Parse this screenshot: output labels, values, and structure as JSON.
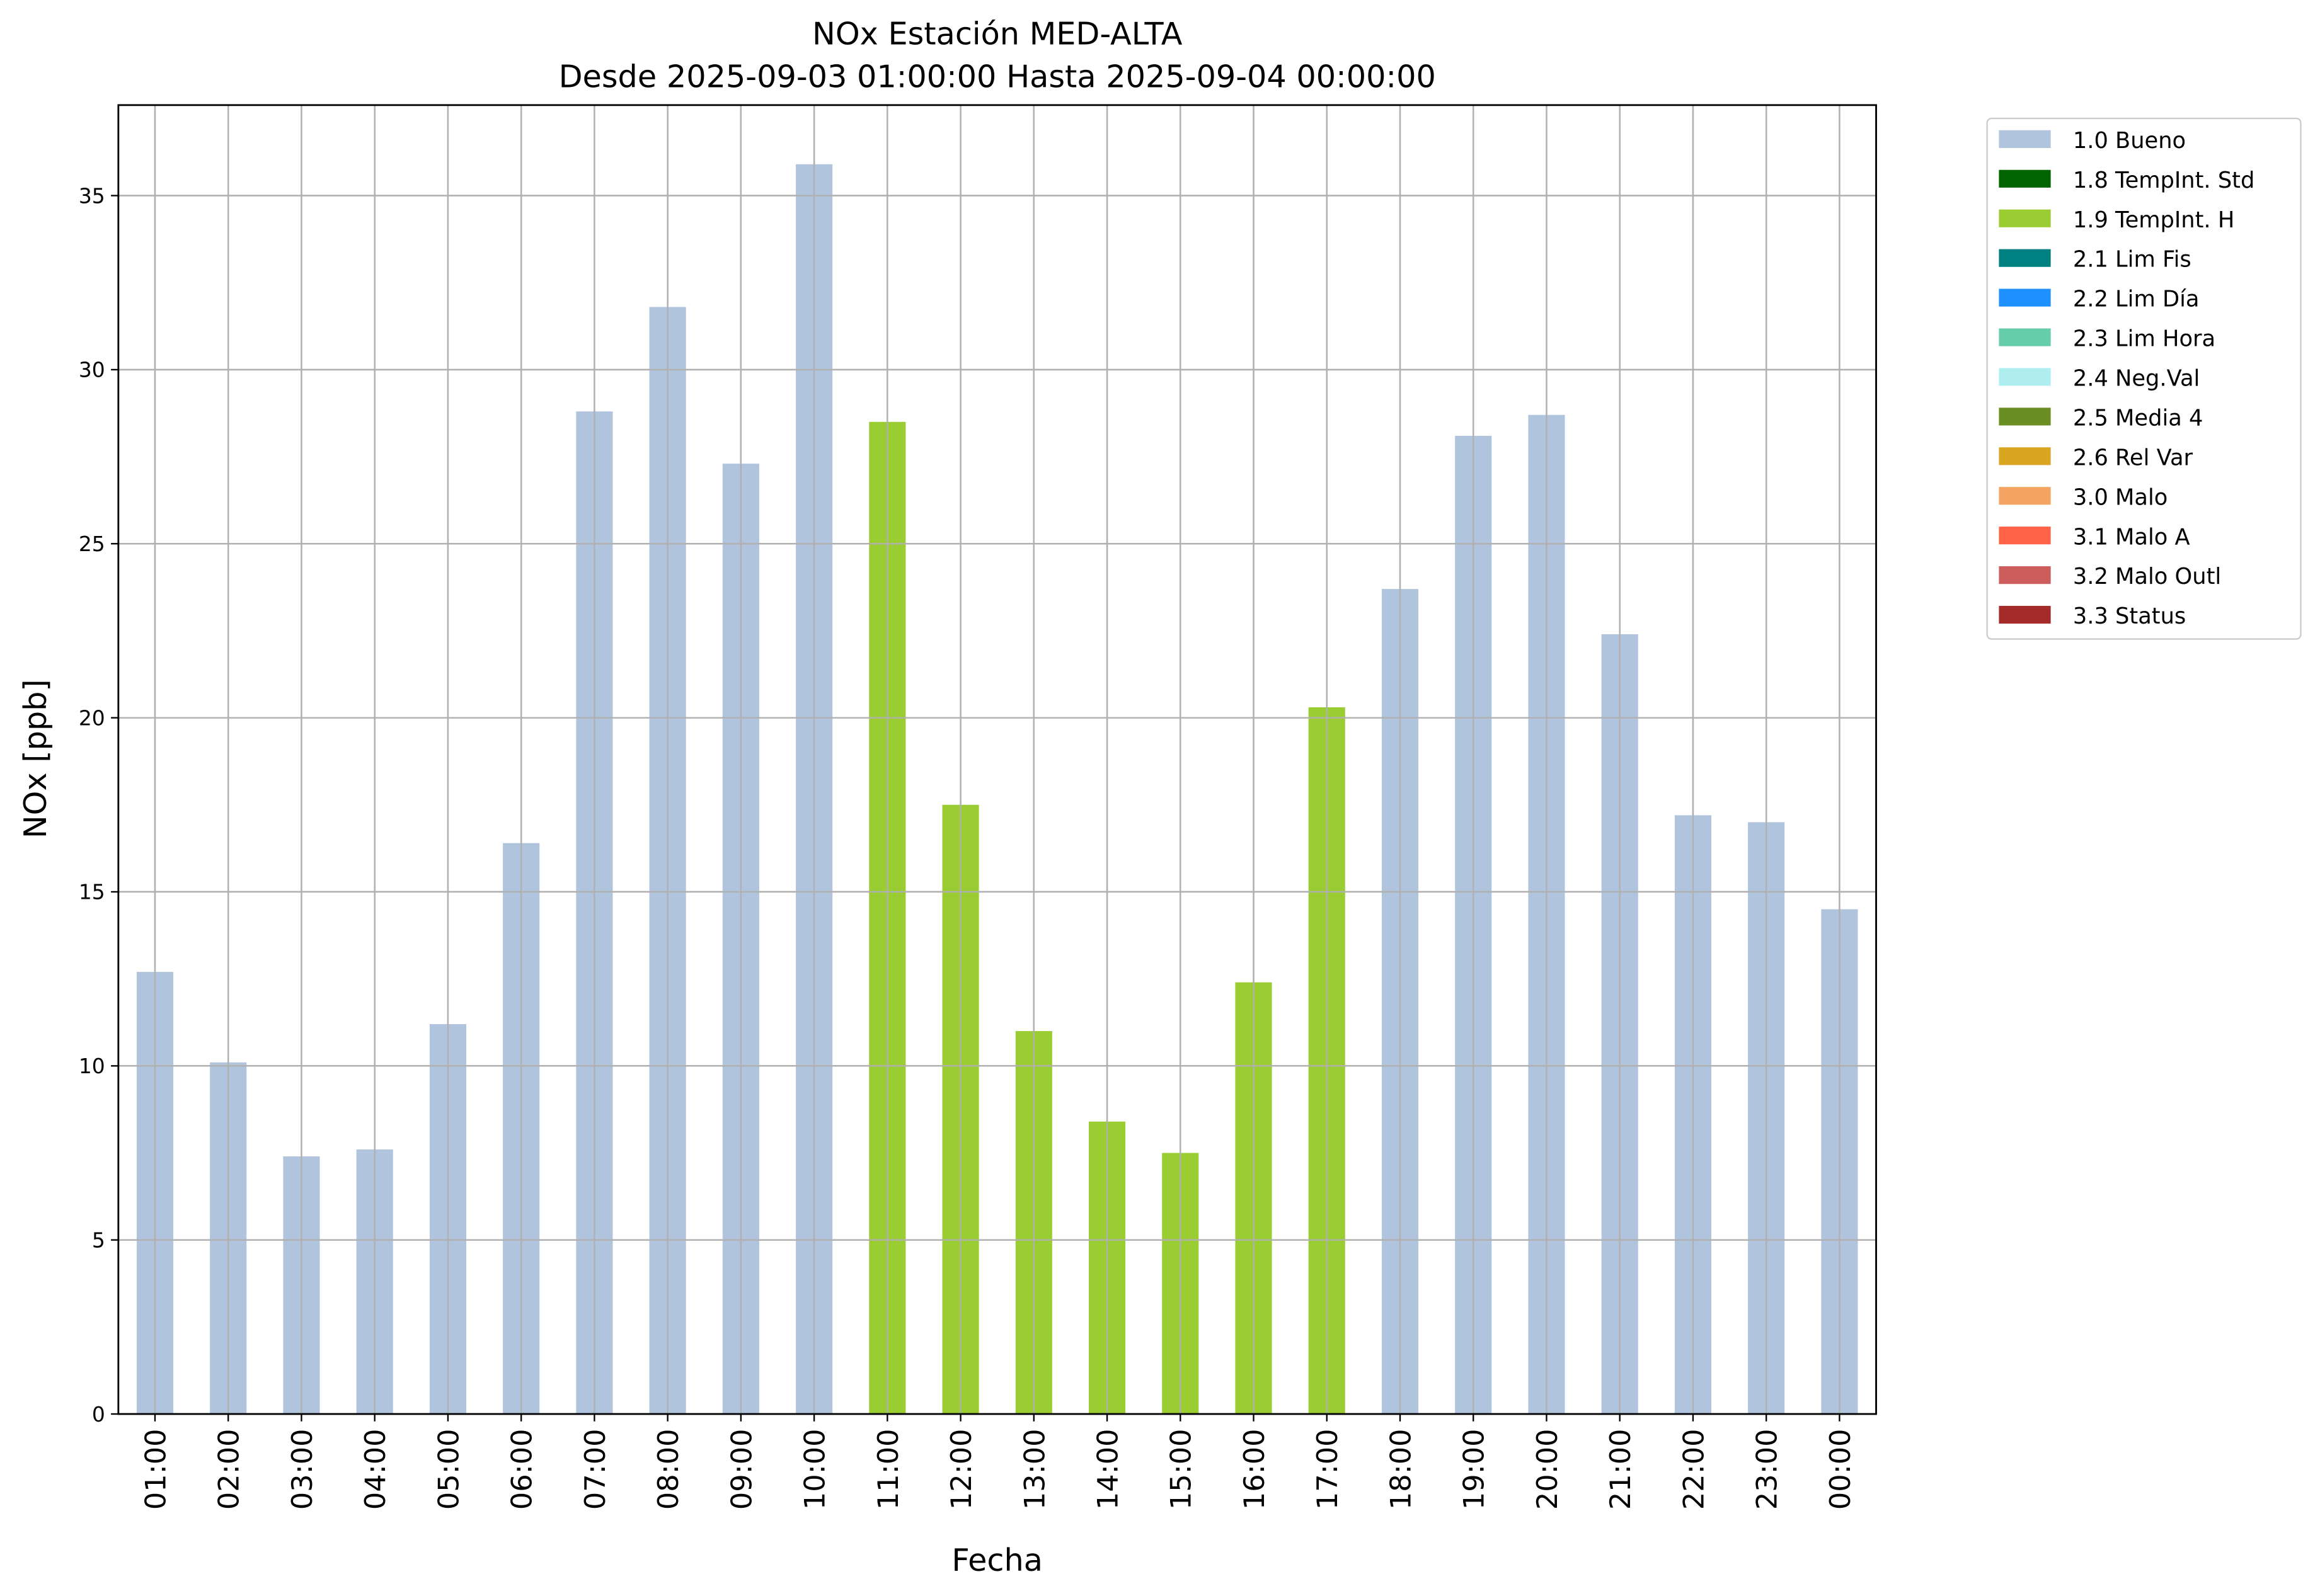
{
  "chart_data": {
    "type": "bar",
    "title": "NOx Estación MED-ALTA",
    "subtitle": "Desde 2025-09-03 01:00:00 Hasta 2025-09-04 00:00:00",
    "xlabel": "Fecha",
    "ylabel": "NOx [ppb]",
    "ylim": [
      0,
      37.6
    ],
    "yticks": [
      0,
      5,
      10,
      15,
      20,
      25,
      30,
      35
    ],
    "grid": true,
    "legend_placement": "outside-top-right",
    "categories": [
      "01:00",
      "02:00",
      "03:00",
      "04:00",
      "05:00",
      "06:00",
      "07:00",
      "08:00",
      "09:00",
      "10:00",
      "11:00",
      "12:00",
      "13:00",
      "14:00",
      "15:00",
      "16:00",
      "17:00",
      "18:00",
      "19:00",
      "20:00",
      "21:00",
      "22:00",
      "23:00",
      "00:00"
    ],
    "values": [
      12.7,
      10.1,
      7.4,
      7.6,
      11.2,
      16.4,
      28.8,
      31.8,
      27.3,
      35.9,
      28.5,
      17.5,
      11.0,
      8.4,
      7.5,
      12.4,
      20.3,
      23.7,
      28.1,
      28.7,
      22.4,
      17.2,
      17.0,
      14.5
    ],
    "flags": [
      "1.0 Bueno",
      "1.0 Bueno",
      "1.0 Bueno",
      "1.0 Bueno",
      "1.0 Bueno",
      "1.0 Bueno",
      "1.0 Bueno",
      "1.0 Bueno",
      "1.0 Bueno",
      "1.0 Bueno",
      "1.9 TempInt. H",
      "1.9 TempInt. H",
      "1.9 TempInt. H",
      "1.9 TempInt. H",
      "1.9 TempInt. H",
      "1.9 TempInt. H",
      "1.9 TempInt. H",
      "1.0 Bueno",
      "1.0 Bueno",
      "1.0 Bueno",
      "1.0 Bueno",
      "1.0 Bueno",
      "1.0 Bueno",
      "1.0 Bueno"
    ],
    "legend": [
      {
        "name": "1.0 Bueno",
        "color": "#b0c4de"
      },
      {
        "name": "1.8 TempInt. Std",
        "color": "#006400"
      },
      {
        "name": "1.9 TempInt. H",
        "color": "#9acd32"
      },
      {
        "name": "2.1 Lim Fis",
        "color": "#008080"
      },
      {
        "name": "2.2 Lim Día",
        "color": "#1e90ff"
      },
      {
        "name": "2.3 Lim Hora",
        "color": "#66cdaa"
      },
      {
        "name": "2.4 Neg.Val",
        "color": "#afeeee"
      },
      {
        "name": "2.5 Media 4",
        "color": "#6b8e23"
      },
      {
        "name": "2.6 Rel Var",
        "color": "#daa520"
      },
      {
        "name": "3.0 Malo",
        "color": "#f4a460"
      },
      {
        "name": "3.1 Malo A",
        "color": "#ff6347"
      },
      {
        "name": "3.2 Malo Outl",
        "color": "#cd5c5c"
      },
      {
        "name": "3.3 Status",
        "color": "#a52a2a"
      }
    ]
  }
}
